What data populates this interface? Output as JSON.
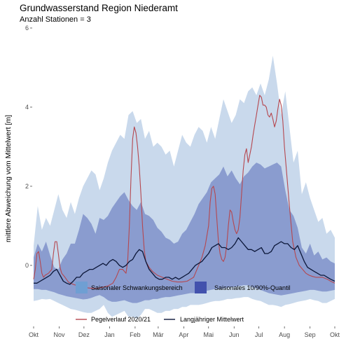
{
  "chart_data": {
    "type": "area",
    "title": "Grundwasserstand Region Niederamt",
    "subtitle": "Anzahl Stationen = 3",
    "xlabel": "",
    "ylabel": "mittlere Abweichung vom Mittelwert [m]",
    "ylim": [
      -1.4,
      6.0
    ],
    "yticks": [
      0,
      2,
      4,
      6
    ],
    "xlim": [
      0,
      365
    ],
    "x_tick_positions": [
      0,
      31,
      61,
      92,
      123,
      151,
      182,
      212,
      243,
      273,
      304,
      335,
      365
    ],
    "x_tick_labels": [
      "Okt",
      "Nov",
      "Dez",
      "Jan",
      "Feb",
      "Mär",
      "Apr",
      "Mai",
      "Jun",
      "Jul",
      "Aug",
      "Sep",
      "Okt"
    ],
    "grid": false,
    "colors": {
      "range_band": "#c9d9ec",
      "quantile_band": "#8a9ccf",
      "gauge_line": "#b5474f",
      "mean_line": "#0b1638"
    },
    "legend": {
      "position": "bottom",
      "items": [
        {
          "label": "Saisonaler Schwankungsbereich",
          "kind": "fill",
          "color": "#6f9fd3"
        },
        {
          "label": "Saisonales 10/90%-Quantil",
          "kind": "fill",
          "color": "#4251ad"
        },
        {
          "label": "Pegelverlauf  2020/21",
          "kind": "line",
          "color": "#b5474f"
        },
        {
          "label": "Langjähriger Mittelwert",
          "kind": "line",
          "color": "#0b1638"
        }
      ]
    },
    "series": [
      {
        "name": "Saisonaler Schwankungsbereich",
        "kind": "band",
        "x": [
          0,
          5,
          10,
          15,
          20,
          25,
          30,
          35,
          40,
          45,
          50,
          55,
          60,
          65,
          70,
          75,
          80,
          85,
          90,
          95,
          100,
          105,
          110,
          115,
          120,
          125,
          130,
          135,
          140,
          145,
          150,
          155,
          160,
          165,
          170,
          175,
          180,
          185,
          190,
          195,
          200,
          205,
          210,
          215,
          220,
          225,
          230,
          235,
          240,
          245,
          250,
          255,
          260,
          265,
          270,
          275,
          280,
          285,
          290,
          295,
          300,
          305,
          310,
          315,
          320,
          325,
          330,
          335,
          340,
          345,
          350,
          355,
          360,
          365
        ],
        "lower": [
          -0.9,
          -0.88,
          -0.85,
          -0.86,
          -0.85,
          -0.9,
          -0.95,
          -1.0,
          -1.05,
          -1.1,
          -1.12,
          -1.15,
          -1.18,
          -1.2,
          -1.2,
          -1.15,
          -1.1,
          -1.0,
          -1.2,
          -1.3,
          -1.25,
          -1.2,
          -1.15,
          -1.3,
          -1.3,
          -1.35,
          -1.25,
          -1.1,
          -1.1,
          -1.15,
          -1.2,
          -1.2,
          -1.15,
          -1.15,
          -1.1,
          -1.1,
          -1.05,
          -1.05,
          -1.0,
          -1.0,
          -1.0,
          -0.98,
          -0.95,
          -0.92,
          -0.9,
          -0.9,
          -0.88,
          -0.85,
          -0.85,
          -0.83,
          -0.82,
          -0.8,
          -0.8,
          -0.85,
          -0.88,
          -0.9,
          -0.95,
          -1.0,
          -1.0,
          -1.02,
          -1.05,
          -1.0,
          -0.98,
          -0.95,
          -0.92,
          -0.9,
          -0.88,
          -0.85,
          -0.88,
          -0.9,
          -0.95,
          -0.95,
          -0.9,
          -0.85
        ],
        "upper": [
          0.5,
          1.5,
          0.9,
          1.2,
          1.0,
          1.4,
          1.8,
          1.4,
          1.2,
          1.6,
          1.3,
          1.7,
          2.0,
          2.2,
          2.4,
          2.3,
          1.9,
          2.2,
          2.6,
          2.9,
          3.1,
          3.3,
          3.2,
          3.8,
          3.9,
          3.6,
          3.7,
          3.2,
          3.4,
          3.0,
          3.1,
          3.0,
          2.8,
          2.9,
          2.5,
          2.9,
          3.3,
          3.1,
          3.0,
          3.3,
          3.5,
          3.4,
          3.1,
          3.5,
          3.2,
          3.7,
          4.2,
          3.9,
          3.6,
          3.8,
          4.2,
          4.1,
          4.4,
          4.5,
          4.3,
          4.6,
          4.3,
          4.7,
          5.3,
          4.6,
          3.8,
          4.4,
          3.5,
          2.6,
          2.9,
          1.8,
          2.1,
          1.7,
          1.4,
          1.1,
          1.2,
          0.8,
          0.9,
          0.7
        ]
      },
      {
        "name": "Saisonales 10/90%-Quantil",
        "kind": "band",
        "x": [
          0,
          5,
          10,
          15,
          20,
          25,
          30,
          35,
          40,
          45,
          50,
          55,
          60,
          65,
          70,
          75,
          80,
          85,
          90,
          95,
          100,
          105,
          110,
          115,
          120,
          125,
          130,
          135,
          140,
          145,
          150,
          155,
          160,
          165,
          170,
          175,
          180,
          185,
          190,
          195,
          200,
          205,
          210,
          215,
          220,
          225,
          230,
          235,
          240,
          245,
          250,
          255,
          260,
          265,
          270,
          275,
          280,
          285,
          290,
          295,
          300,
          305,
          310,
          315,
          320,
          325,
          330,
          335,
          340,
          345,
          350,
          355,
          360,
          365
        ],
        "lower": [
          -0.6,
          -0.6,
          -0.62,
          -0.62,
          -0.65,
          -0.68,
          -0.72,
          -0.75,
          -0.78,
          -0.8,
          -0.82,
          -0.84,
          -0.86,
          -0.85,
          -0.82,
          -0.78,
          -0.75,
          -0.8,
          -0.88,
          -0.92,
          -0.92,
          -0.9,
          -0.88,
          -0.92,
          -0.95,
          -0.95,
          -0.92,
          -0.88,
          -0.88,
          -0.85,
          -0.85,
          -0.82,
          -0.8,
          -0.8,
          -0.78,
          -0.76,
          -0.74,
          -0.72,
          -0.7,
          -0.7,
          -0.68,
          -0.66,
          -0.64,
          -0.62,
          -0.6,
          -0.6,
          -0.58,
          -0.56,
          -0.55,
          -0.54,
          -0.52,
          -0.5,
          -0.5,
          -0.55,
          -0.58,
          -0.62,
          -0.66,
          -0.7,
          -0.72,
          -0.74,
          -0.76,
          -0.74,
          -0.72,
          -0.7,
          -0.68,
          -0.66,
          -0.64,
          -0.62,
          -0.62,
          -0.64,
          -0.66,
          -0.66,
          -0.64,
          -0.62
        ],
        "upper": [
          0.2,
          0.55,
          0.35,
          0.6,
          0.25,
          -0.05,
          -0.1,
          0.15,
          0.3,
          0.55,
          0.55,
          0.9,
          1.3,
          1.2,
          1.05,
          0.8,
          1.2,
          1.15,
          1.25,
          1.45,
          1.6,
          1.75,
          1.85,
          1.65,
          1.5,
          1.4,
          1.6,
          1.3,
          1.25,
          1.15,
          0.95,
          0.85,
          0.7,
          0.65,
          0.55,
          0.6,
          0.8,
          0.9,
          1.1,
          1.3,
          1.55,
          1.7,
          1.85,
          2.1,
          2.2,
          2.3,
          2.5,
          2.25,
          2.4,
          2.2,
          2.05,
          2.25,
          2.35,
          2.5,
          2.6,
          2.55,
          2.45,
          2.5,
          2.55,
          2.6,
          2.5,
          1.9,
          1.4,
          1.25,
          0.95,
          0.45,
          0.3,
          0.55,
          0.25,
          0.35,
          0.15,
          0.2,
          0.1,
          0.05
        ]
      },
      {
        "name": "Pegelverlauf  2020/21",
        "kind": "line",
        "x": [
          0,
          2,
          4,
          6,
          8,
          10,
          12,
          14,
          18,
          22,
          24,
          26,
          28,
          30,
          32,
          34,
          38,
          42,
          48,
          54,
          60,
          66,
          72,
          78,
          84,
          90,
          96,
          100,
          104,
          108,
          112,
          114,
          116,
          118,
          120,
          122,
          124,
          126,
          128,
          130,
          132,
          134,
          136,
          140,
          144,
          150,
          156,
          162,
          168,
          174,
          180,
          186,
          190,
          194,
          196,
          200,
          204,
          208,
          212,
          214,
          216,
          218,
          220,
          222,
          224,
          226,
          228,
          230,
          232,
          234,
          236,
          238,
          240,
          242,
          244,
          246,
          248,
          250,
          252,
          254,
          256,
          258,
          260,
          262,
          264,
          266,
          268,
          270,
          272,
          274,
          276,
          278,
          280,
          282,
          284,
          286,
          288,
          290,
          292,
          294,
          296,
          298,
          300,
          302,
          304,
          306,
          310,
          314,
          318,
          322,
          326,
          330,
          334,
          338,
          342,
          346,
          350,
          356,
          360,
          365
        ],
        "y": [
          -0.35,
          -0.1,
          0.3,
          0.35,
          0.1,
          -0.2,
          -0.3,
          -0.25,
          -0.2,
          -0.1,
          0.3,
          0.6,
          0.6,
          0.3,
          -0.05,
          -0.2,
          -0.3,
          -0.42,
          -0.48,
          -0.52,
          -0.55,
          -0.57,
          -0.58,
          -0.58,
          -0.55,
          -0.52,
          -0.45,
          -0.3,
          -0.1,
          -0.1,
          -0.2,
          0.1,
          1.0,
          2.2,
          3.2,
          3.5,
          3.35,
          3.0,
          2.5,
          1.8,
          1.0,
          0.4,
          0.1,
          -0.05,
          -0.15,
          -0.25,
          -0.3,
          -0.35,
          -0.4,
          -0.42,
          -0.42,
          -0.4,
          -0.35,
          -0.3,
          -0.2,
          0.0,
          0.2,
          0.5,
          1.0,
          1.6,
          1.95,
          2.0,
          1.8,
          1.2,
          0.6,
          0.3,
          0.15,
          0.1,
          0.2,
          0.5,
          1.0,
          1.4,
          1.35,
          1.1,
          0.9,
          0.8,
          0.9,
          1.2,
          1.8,
          2.4,
          2.8,
          2.95,
          2.6,
          2.8,
          3.0,
          3.3,
          3.55,
          3.8,
          4.05,
          4.3,
          4.25,
          4.05,
          4.05,
          4.0,
          3.8,
          3.75,
          3.85,
          3.7,
          3.5,
          3.65,
          3.95,
          4.2,
          4.05,
          3.65,
          3.0,
          2.5,
          1.5,
          0.6,
          0.2,
          0.0,
          -0.1,
          -0.2,
          -0.25,
          -0.28,
          -0.3,
          -0.3,
          -0.3,
          -0.35,
          -0.4,
          -0.45
        ]
      },
      {
        "name": "Langjähriger Mittelwert",
        "kind": "line",
        "x": [
          0,
          4,
          8,
          12,
          16,
          20,
          24,
          28,
          32,
          36,
          40,
          44,
          48,
          52,
          56,
          60,
          64,
          68,
          72,
          76,
          80,
          84,
          88,
          92,
          96,
          100,
          104,
          108,
          112,
          116,
          120,
          124,
          128,
          132,
          136,
          140,
          144,
          148,
          152,
          156,
          160,
          164,
          168,
          172,
          176,
          180,
          184,
          188,
          192,
          196,
          200,
          204,
          208,
          212,
          216,
          220,
          224,
          228,
          232,
          236,
          240,
          244,
          248,
          252,
          256,
          260,
          264,
          268,
          272,
          276,
          280,
          284,
          288,
          292,
          296,
          300,
          304,
          308,
          312,
          316,
          320,
          324,
          328,
          332,
          336,
          340,
          344,
          348,
          352,
          356,
          360,
          365
        ],
        "y": [
          -0.45,
          -0.45,
          -0.4,
          -0.35,
          -0.3,
          -0.25,
          -0.15,
          -0.1,
          -0.25,
          -0.4,
          -0.45,
          -0.48,
          -0.4,
          -0.3,
          -0.3,
          -0.2,
          -0.15,
          -0.1,
          -0.1,
          -0.05,
          0.0,
          0.05,
          0.0,
          0.1,
          0.15,
          0.1,
          0.0,
          -0.05,
          0.0,
          0.1,
          0.15,
          0.3,
          0.4,
          0.35,
          0.1,
          -0.1,
          -0.2,
          -0.3,
          -0.35,
          -0.35,
          -0.3,
          -0.3,
          -0.35,
          -0.3,
          -0.35,
          -0.3,
          -0.25,
          -0.2,
          -0.1,
          0.0,
          0.05,
          0.1,
          0.2,
          0.3,
          0.45,
          0.5,
          0.55,
          0.45,
          0.45,
          0.4,
          0.45,
          0.55,
          0.7,
          0.6,
          0.5,
          0.4,
          0.4,
          0.35,
          0.4,
          0.45,
          0.3,
          0.3,
          0.35,
          0.5,
          0.55,
          0.6,
          0.55,
          0.55,
          0.45,
          0.4,
          0.5,
          0.3,
          0.1,
          -0.05,
          -0.1,
          -0.15,
          -0.2,
          -0.25,
          -0.25,
          -0.3,
          -0.35,
          -0.4
        ]
      }
    ]
  }
}
